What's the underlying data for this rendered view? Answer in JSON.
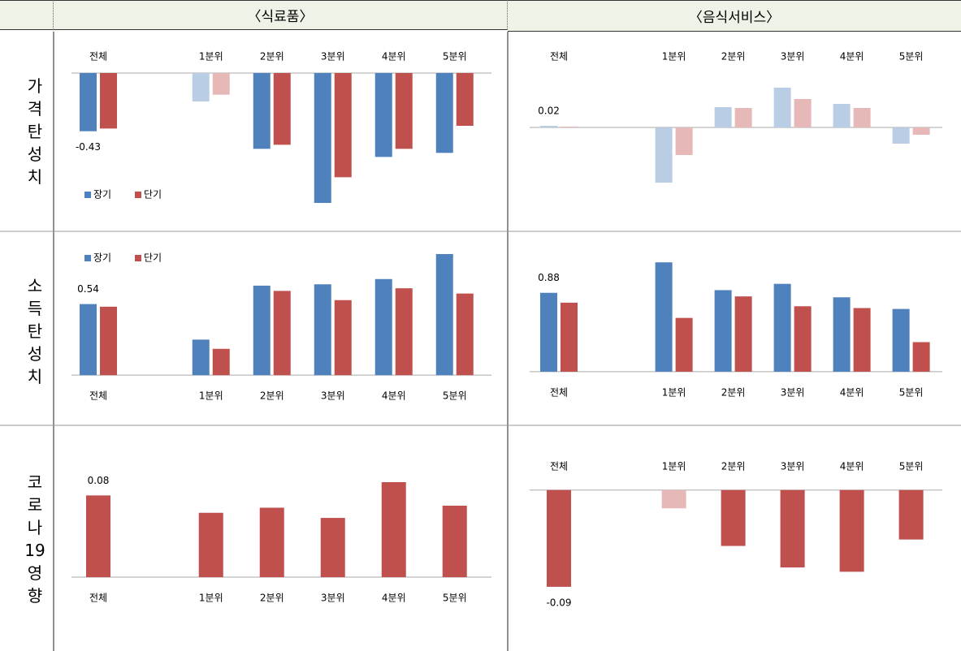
{
  "table": {
    "columns": [
      "〈식료품〉",
      "〈음식서비스〉"
    ],
    "rows": [
      "가격탄성치",
      "소득탄성치",
      "코로나19영향"
    ]
  },
  "chart_data": [
    {
      "type": "bar",
      "categories": [
        "전체",
        "1분위",
        "2분위",
        "3분위",
        "4분위",
        "5분위"
      ],
      "label_position": "top",
      "legend": "bottom-left",
      "ylim": [
        -1.05,
        0.21
      ],
      "series": [
        {
          "name": "장기",
          "color": "#4f81bd",
          "colors": [
            "#4f81bd",
            "#b9cde5",
            "#4f81bd",
            "#4f81bd",
            "#4f81bd",
            "#4f81bd"
          ],
          "values": [
            -0.43,
            -0.21,
            -0.56,
            -0.96,
            -0.62,
            -0.59
          ],
          "value_labels": [
            "-0.43",
            null,
            null,
            null,
            null,
            null
          ]
        },
        {
          "name": "단기",
          "color": "#c0504d",
          "colors": [
            "#c0504d",
            "#e6b9b8",
            "#c0504d",
            "#c0504d",
            "#c0504d",
            "#c0504d"
          ],
          "values": [
            -0.41,
            -0.16,
            -0.53,
            -0.77,
            -0.56,
            -0.39
          ]
        }
      ]
    },
    {
      "type": "bar",
      "categories": [
        "전체",
        "1분위",
        "2분위",
        "3분위",
        "4분위",
        "5분위"
      ],
      "label_position": "top",
      "ylim": [
        -1.08,
        1.02
      ],
      "series": [
        {
          "colors": [
            "#b9cde5",
            "#b9cde5",
            "#b9cde5",
            "#b9cde5",
            "#b9cde5",
            "#b9cde5"
          ],
          "values": [
            0.02,
            -0.68,
            0.25,
            0.49,
            0.29,
            -0.2
          ],
          "value_labels": [
            "0.02",
            null,
            null,
            null,
            null,
            null
          ]
        },
        {
          "colors": [
            "#e6b9b8",
            "#e6b9b8",
            "#e6b9b8",
            "#e6b9b8",
            "#e6b9b8",
            "#e6b9b8"
          ],
          "values": [
            0.01,
            -0.34,
            0.24,
            0.35,
            0.24,
            -0.09
          ]
        }
      ]
    },
    {
      "type": "bar",
      "categories": [
        "전체",
        "1분위",
        "2분위",
        "3분위",
        "4분위",
        "5분위"
      ],
      "label_position": "bottom",
      "legend": "top-left",
      "ylim": [
        -0.11,
        1.0
      ],
      "series": [
        {
          "name": "장기",
          "color": "#4f81bd",
          "colors": [
            "#4f81bd",
            "#4f81bd",
            "#4f81bd",
            "#4f81bd",
            "#4f81bd",
            "#4f81bd"
          ],
          "values": [
            0.54,
            0.27,
            0.68,
            0.69,
            0.73,
            0.92
          ],
          "value_labels": [
            "0.54",
            null,
            null,
            null,
            null,
            null
          ]
        },
        {
          "name": "단기",
          "color": "#c0504d",
          "colors": [
            "#c0504d",
            "#c0504d",
            "#c0504d",
            "#c0504d",
            "#c0504d",
            "#c0504d"
          ],
          "values": [
            0.52,
            0.2,
            0.64,
            0.57,
            0.66,
            0.62
          ]
        }
      ]
    },
    {
      "type": "bar",
      "categories": [
        "전체",
        "1분위",
        "2분위",
        "3분위",
        "4분위",
        "5분위"
      ],
      "label_position": "bottom",
      "ylim": [
        -0.2,
        1.43
      ],
      "series": [
        {
          "colors": [
            "#4f81bd",
            "#4f81bd",
            "#4f81bd",
            "#4f81bd",
            "#4f81bd",
            "#4f81bd"
          ],
          "values": [
            0.88,
            1.22,
            0.91,
            0.98,
            0.83,
            0.7
          ],
          "value_labels": [
            "0.88",
            null,
            null,
            null,
            null,
            null
          ]
        },
        {
          "colors": [
            "#c0504d",
            "#c0504d",
            "#c0504d",
            "#c0504d",
            "#c0504d",
            "#c0504d"
          ],
          "values": [
            0.77,
            0.6,
            0.84,
            0.73,
            0.71,
            0.33
          ]
        }
      ]
    },
    {
      "type": "bar",
      "categories": [
        "전체",
        "1분위",
        "2분위",
        "3분위",
        "4분위",
        "5분위"
      ],
      "label_position": "bottom",
      "ylim": [
        -0.023,
        0.12
      ],
      "series": [
        {
          "colors": [
            "#c0504d",
            "#c0504d",
            "#c0504d",
            "#c0504d",
            "#c0504d",
            "#c0504d"
          ],
          "values": [
            0.08,
            0.063,
            0.068,
            0.058,
            0.093,
            0.07
          ],
          "value_labels": [
            "0.08",
            null,
            null,
            null,
            null,
            null
          ]
        }
      ]
    },
    {
      "type": "bar",
      "categories": [
        "전체",
        "1분위",
        "2분위",
        "3분위",
        "4분위",
        "5분위"
      ],
      "label_position": "top",
      "ylim": [
        -0.118,
        0.033
      ],
      "series": [
        {
          "colors": [
            "#c0504d",
            "#e6b9b8",
            "#c0504d",
            "#c0504d",
            "#c0504d",
            "#c0504d"
          ],
          "values": [
            -0.09,
            -0.017,
            -0.052,
            -0.072,
            -0.076,
            -0.046
          ],
          "value_labels": [
            "-0.09",
            null,
            null,
            null,
            null,
            null
          ]
        }
      ]
    }
  ]
}
